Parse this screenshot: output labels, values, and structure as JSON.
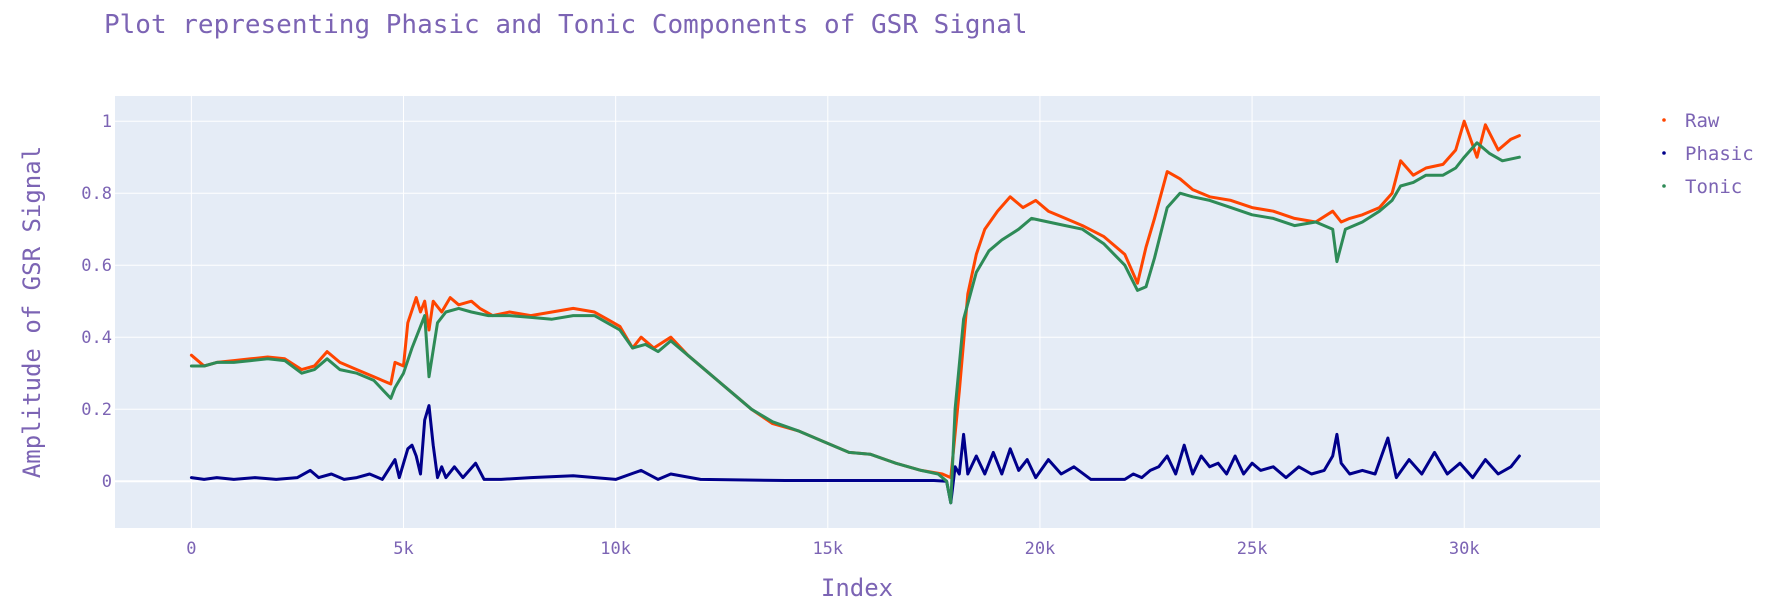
{
  "chart_data": {
    "type": "line",
    "title": "Plot representing Phasic and Tonic Components of GSR Signal",
    "xlabel": "Index",
    "ylabel": "Amplitude of GSR Signal",
    "xlim": [
      -1800,
      33200
    ],
    "ylim": [
      -0.13,
      1.07
    ],
    "x_ticks": [
      0,
      5000,
      10000,
      15000,
      20000,
      25000,
      30000
    ],
    "x_tick_labels": [
      "0",
      "5k",
      "10k",
      "15k",
      "20k",
      "25k",
      "30k"
    ],
    "y_ticks": [
      0,
      0.2,
      0.4,
      0.6,
      0.8,
      1
    ],
    "y_tick_labels": [
      "0",
      "0.2",
      "0.4",
      "0.6",
      "0.8",
      "1"
    ],
    "grid": true,
    "legend_position": "right",
    "series": [
      {
        "name": "Raw",
        "color": "#ff4500",
        "x": [
          0,
          300,
          600,
          1000,
          1400,
          1800,
          2200,
          2600,
          2900,
          3200,
          3500,
          3900,
          4300,
          4700,
          4800,
          5000,
          5100,
          5300,
          5400,
          5500,
          5600,
          5700,
          5900,
          6100,
          6300,
          6600,
          6800,
          7100,
          7500,
          8000,
          8500,
          9000,
          9500,
          9800,
          10100,
          10400,
          10600,
          10900,
          11300,
          11700,
          12200,
          12700,
          13200,
          13700,
          14300,
          14900,
          15500,
          16000,
          16600,
          17200,
          17700,
          17900,
          18100,
          18300,
          18500,
          18700,
          19000,
          19300,
          19600,
          19900,
          20200,
          20600,
          21000,
          21500,
          22000,
          22300,
          22500,
          22700,
          23000,
          23300,
          23600,
          24000,
          24500,
          25000,
          25500,
          26000,
          26500,
          26900,
          27100,
          27300,
          27600,
          28000,
          28300,
          28500,
          28800,
          29100,
          29500,
          29800,
          30000,
          30300,
          30500,
          30800,
          31100,
          31300
        ],
        "values": [
          0.35,
          0.32,
          0.33,
          0.335,
          0.34,
          0.345,
          0.34,
          0.31,
          0.32,
          0.36,
          0.33,
          0.31,
          0.29,
          0.27,
          0.33,
          0.32,
          0.44,
          0.51,
          0.47,
          0.5,
          0.42,
          0.5,
          0.47,
          0.51,
          0.49,
          0.5,
          0.48,
          0.46,
          0.47,
          0.46,
          0.47,
          0.48,
          0.47,
          0.45,
          0.43,
          0.37,
          0.4,
          0.37,
          0.4,
          0.35,
          0.3,
          0.25,
          0.2,
          0.16,
          0.14,
          0.11,
          0.08,
          0.075,
          0.05,
          0.03,
          0.02,
          0.01,
          0.25,
          0.52,
          0.63,
          0.7,
          0.75,
          0.79,
          0.76,
          0.78,
          0.75,
          0.73,
          0.71,
          0.68,
          0.63,
          0.55,
          0.65,
          0.73,
          0.86,
          0.84,
          0.81,
          0.79,
          0.78,
          0.76,
          0.75,
          0.73,
          0.72,
          0.75,
          0.72,
          0.73,
          0.74,
          0.76,
          0.8,
          0.89,
          0.85,
          0.87,
          0.88,
          0.92,
          1.0,
          0.9,
          0.99,
          0.92,
          0.95,
          0.96
        ]
      },
      {
        "name": "Phasic",
        "color": "#00008b",
        "x": [
          0,
          300,
          600,
          1000,
          1500,
          2000,
          2500,
          2800,
          3000,
          3300,
          3600,
          3900,
          4200,
          4500,
          4800,
          4900,
          5100,
          5200,
          5300,
          5400,
          5500,
          5600,
          5700,
          5800,
          5900,
          6000,
          6200,
          6400,
          6700,
          6900,
          7300,
          8000,
          9000,
          10000,
          10600,
          11000,
          11300,
          12000,
          14000,
          16000,
          17500,
          17800,
          17900,
          18000,
          18100,
          18200,
          18300,
          18500,
          18700,
          18900,
          19100,
          19300,
          19500,
          19700,
          19900,
          20200,
          20500,
          20800,
          21200,
          21600,
          22000,
          22200,
          22400,
          22600,
          22800,
          23000,
          23200,
          23400,
          23600,
          23800,
          24000,
          24200,
          24400,
          24600,
          24800,
          25000,
          25200,
          25500,
          25800,
          26100,
          26400,
          26700,
          26900,
          27000,
          27100,
          27300,
          27600,
          27900,
          28200,
          28400,
          28700,
          29000,
          29300,
          29600,
          29900,
          30200,
          30500,
          30800,
          31100,
          31300
        ],
        "values": [
          0.01,
          0.005,
          0.01,
          0.005,
          0.01,
          0.005,
          0.01,
          0.03,
          0.01,
          0.02,
          0.005,
          0.01,
          0.02,
          0.005,
          0.06,
          0.01,
          0.09,
          0.1,
          0.07,
          0.02,
          0.17,
          0.21,
          0.1,
          0.01,
          0.04,
          0.01,
          0.04,
          0.01,
          0.05,
          0.005,
          0.005,
          0.01,
          0.015,
          0.005,
          0.03,
          0.005,
          0.02,
          0.005,
          0.002,
          0.002,
          0.002,
          0.0,
          -0.06,
          0.04,
          0.02,
          0.13,
          0.02,
          0.07,
          0.02,
          0.08,
          0.02,
          0.09,
          0.03,
          0.06,
          0.01,
          0.06,
          0.02,
          0.04,
          0.005,
          0.005,
          0.005,
          0.02,
          0.01,
          0.03,
          0.04,
          0.07,
          0.02,
          0.1,
          0.02,
          0.07,
          0.04,
          0.05,
          0.02,
          0.07,
          0.02,
          0.05,
          0.03,
          0.04,
          0.01,
          0.04,
          0.02,
          0.03,
          0.07,
          0.13,
          0.05,
          0.02,
          0.03,
          0.02,
          0.12,
          0.01,
          0.06,
          0.02,
          0.08,
          0.02,
          0.05,
          0.01,
          0.06,
          0.02,
          0.04,
          0.07
        ]
      },
      {
        "name": "Tonic",
        "color": "#2e8b57",
        "x": [
          0,
          300,
          600,
          1000,
          1400,
          1800,
          2200,
          2600,
          2900,
          3200,
          3500,
          3900,
          4300,
          4700,
          4800,
          5000,
          5200,
          5400,
          5500,
          5600,
          5800,
          6000,
          6300,
          6600,
          7000,
          7500,
          8000,
          8500,
          9000,
          9500,
          9800,
          10100,
          10400,
          10700,
          11000,
          11300,
          11700,
          12200,
          12700,
          13200,
          13700,
          14300,
          14900,
          15500,
          16000,
          16600,
          17200,
          17600,
          17800,
          17900,
          18000,
          18200,
          18500,
          18800,
          19100,
          19500,
          19800,
          20200,
          20600,
          21000,
          21500,
          22000,
          22300,
          22500,
          22700,
          23000,
          23300,
          23600,
          24000,
          24500,
          25000,
          25500,
          26000,
          26500,
          26900,
          27000,
          27200,
          27600,
          28000,
          28300,
          28500,
          28800,
          29100,
          29500,
          29800,
          30000,
          30300,
          30600,
          30900,
          31300
        ],
        "values": [
          0.32,
          0.32,
          0.33,
          0.33,
          0.335,
          0.34,
          0.335,
          0.3,
          0.31,
          0.34,
          0.31,
          0.3,
          0.28,
          0.23,
          0.26,
          0.3,
          0.37,
          0.43,
          0.46,
          0.29,
          0.44,
          0.47,
          0.48,
          0.47,
          0.46,
          0.46,
          0.455,
          0.45,
          0.46,
          0.46,
          0.44,
          0.42,
          0.37,
          0.38,
          0.36,
          0.39,
          0.35,
          0.3,
          0.25,
          0.2,
          0.165,
          0.14,
          0.11,
          0.08,
          0.075,
          0.05,
          0.03,
          0.02,
          0.0,
          -0.06,
          0.2,
          0.45,
          0.58,
          0.64,
          0.67,
          0.7,
          0.73,
          0.72,
          0.71,
          0.7,
          0.66,
          0.6,
          0.53,
          0.54,
          0.62,
          0.76,
          0.8,
          0.79,
          0.78,
          0.76,
          0.74,
          0.73,
          0.71,
          0.72,
          0.7,
          0.61,
          0.7,
          0.72,
          0.75,
          0.78,
          0.82,
          0.83,
          0.85,
          0.85,
          0.87,
          0.9,
          0.94,
          0.91,
          0.89,
          0.9
        ]
      }
    ]
  }
}
